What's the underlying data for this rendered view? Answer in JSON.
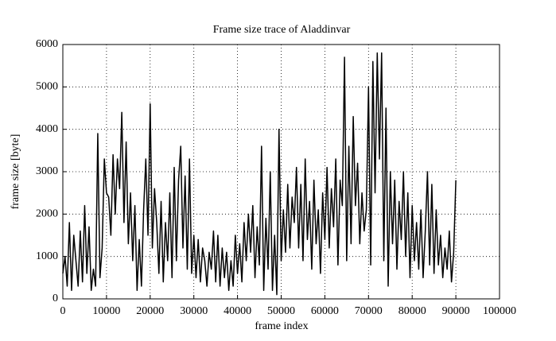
{
  "chart_data": {
    "type": "line",
    "title": "Frame size trace of Aladdinvar",
    "x_label": "frame index",
    "y_label": "frame size [byte]",
    "x": [
      0,
      500,
      1000,
      1500,
      2000,
      2500,
      3000,
      3500,
      4000,
      4500,
      5000,
      5500,
      6000,
      6500,
      7000,
      7500,
      8000,
      8500,
      9000,
      9500,
      10000,
      10500,
      11000,
      11500,
      12000,
      12500,
      13000,
      13500,
      14000,
      14500,
      15000,
      15500,
      16000,
      16500,
      17000,
      17500,
      18000,
      18500,
      19000,
      19500,
      20000,
      20500,
      21000,
      21500,
      22000,
      22500,
      23000,
      23500,
      24000,
      24500,
      25000,
      25500,
      26000,
      26500,
      27000,
      27500,
      28000,
      28500,
      29000,
      29500,
      30000,
      30500,
      31000,
      31500,
      32000,
      32500,
      33000,
      33500,
      34000,
      34500,
      35000,
      35500,
      36000,
      36500,
      37000,
      37500,
      38000,
      38500,
      39000,
      39500,
      40000,
      40500,
      41000,
      41500,
      42000,
      42500,
      43000,
      43500,
      44000,
      44500,
      45000,
      45500,
      46000,
      46500,
      47000,
      47500,
      48000,
      48500,
      49000,
      49500,
      50000,
      50500,
      51000,
      51500,
      52000,
      52500,
      53000,
      53500,
      54000,
      54500,
      55000,
      55500,
      56000,
      56500,
      57000,
      57500,
      58000,
      58500,
      59000,
      59500,
      60000,
      60500,
      61000,
      61500,
      62000,
      62500,
      63000,
      63500,
      64000,
      64500,
      65000,
      65500,
      66000,
      66500,
      67000,
      67500,
      68000,
      68500,
      69000,
      69500,
      70000,
      70500,
      71000,
      71500,
      72000,
      72500,
      73000,
      73500,
      74000,
      74500,
      75000,
      75500,
      76000,
      76500,
      77000,
      77500,
      78000,
      78500,
      79000,
      79500,
      80000,
      80500,
      81000,
      81500,
      82000,
      82500,
      83000,
      83500,
      84000,
      84500,
      85000,
      85500,
      86000,
      86500,
      87000,
      87500,
      88000,
      88500,
      89000,
      89500,
      90000
    ],
    "values": [
      600,
      1000,
      300,
      1800,
      200,
      1500,
      900,
      300,
      1600,
      400,
      2200,
      600,
      1700,
      200,
      700,
      300,
      3900,
      500,
      1200,
      3300,
      2500,
      2400,
      1500,
      3400,
      2000,
      3300,
      2600,
      4400,
      1800,
      3700,
      1300,
      2500,
      900,
      2200,
      200,
      1400,
      300,
      2100,
      3300,
      1500,
      4600,
      1200,
      2600,
      1800,
      600,
      2300,
      400,
      1800,
      900,
      2500,
      500,
      3100,
      900,
      2800,
      3600,
      1200,
      2900,
      700,
      3300,
      600,
      1500,
      500,
      1400,
      400,
      1200,
      900,
      300,
      1100,
      700,
      1600,
      400,
      1500,
      300,
      1200,
      500,
      1100,
      200,
      900,
      300,
      1500,
      600,
      1300,
      400,
      1800,
      900,
      2000,
      1100,
      2200,
      500,
      1700,
      800,
      3600,
      200,
      1900,
      700,
      3000,
      200,
      1500,
      100,
      4000,
      900,
      2100,
      1100,
      2700,
      1200,
      2400,
      1800,
      3100,
      1200,
      2700,
      900,
      3300,
      1400,
      2300,
      700,
      2800,
      1300,
      2100,
      600,
      2500,
      1400,
      3100,
      1200,
      2600,
      1700,
      3300,
      800,
      2800,
      2200,
      5700,
      900,
      3600,
      1300,
      4300,
      2200,
      3200,
      1300,
      2500,
      1600,
      2100,
      5000,
      800,
      5600,
      2500,
      5800,
      3300,
      5800,
      900,
      4500,
      300,
      3000,
      1300,
      2800,
      700,
      2300,
      1400,
      3000,
      1000,
      2500,
      500,
      2200,
      900,
      1800,
      700,
      2100,
      500,
      1600,
      3000,
      800,
      2700,
      600,
      2100,
      800,
      1500,
      500,
      1200,
      700,
      1600,
      400,
      1100,
      2800
    ],
    "color": "#000000",
    "xlim": [
      0,
      100000
    ],
    "xticks": [
      0,
      10000,
      20000,
      30000,
      40000,
      50000,
      60000,
      70000,
      80000,
      90000,
      100000
    ],
    "ylim": [
      0,
      6000
    ],
    "yticks": [
      0,
      1000,
      2000,
      3000,
      4000,
      5000,
      6000
    ],
    "grid": true
  }
}
